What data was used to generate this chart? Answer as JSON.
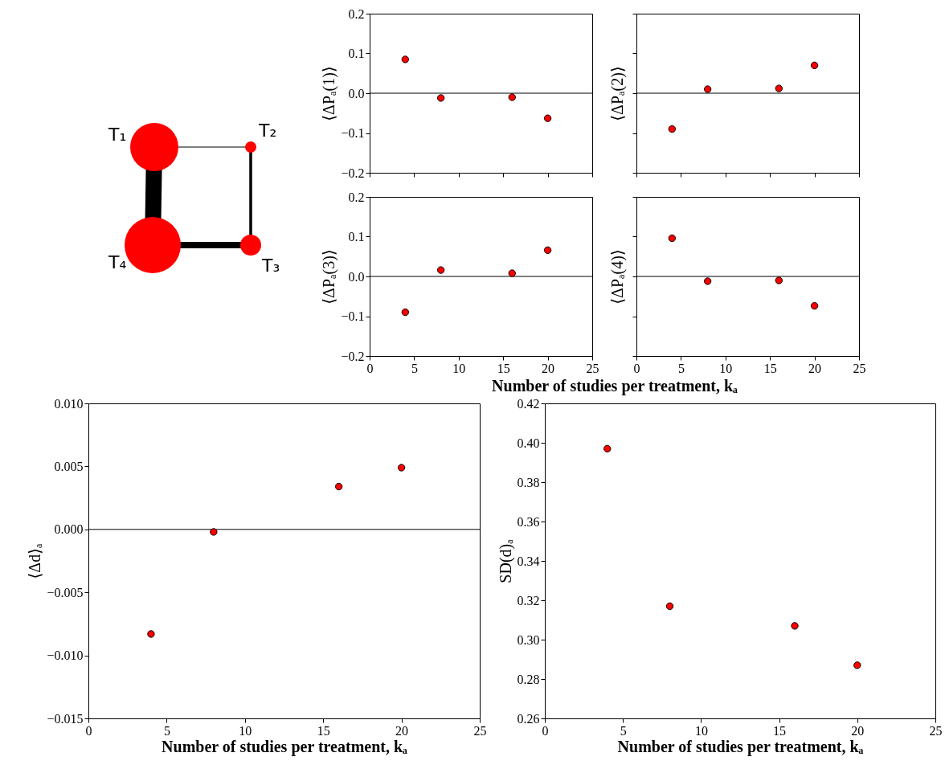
{
  "chart_data": [
    {
      "type": "other",
      "annotations": [
        "T₁",
        "T₂",
        "T₃",
        "T₄"
      ]
    },
    {
      "type": "scatter",
      "ylabel": "⟨ΔPₐ(1)⟩",
      "x": [
        4,
        8,
        16,
        20
      ],
      "values": [
        0.085,
        -0.012,
        -0.01,
        -0.063
      ],
      "color": "#ff0000",
      "marker": "circle",
      "xlim": [
        0,
        25
      ],
      "xticks": [
        0,
        5,
        10,
        15,
        20,
        25
      ],
      "ylim": [
        -0.2,
        0.2
      ],
      "yticks": [
        {
          "value": -0.2,
          "label": "−0.2"
        },
        {
          "value": -0.1,
          "label": "−0.1"
        },
        {
          "value": 0,
          "label": "0.0"
        },
        {
          "value": 0.1,
          "label": "0.1"
        },
        {
          "value": 0.2,
          "label": "0.2"
        }
      ],
      "ref_lines": [
        {
          "axis": "y",
          "value": 0
        }
      ],
      "tick_labels": "y"
    },
    {
      "type": "scatter",
      "ylabel": "⟨ΔPₐ(2)⟩",
      "x": [
        4,
        8,
        16,
        20
      ],
      "values": [
        -0.09,
        0.01,
        0.012,
        0.07
      ],
      "color": "#ff0000",
      "marker": "circle",
      "xlim": [
        0,
        25
      ],
      "xticks": [
        0,
        5,
        10,
        15,
        20,
        25
      ],
      "ylim": [
        -0.2,
        0.2
      ],
      "yticks": [
        -0.2,
        -0.1,
        0,
        0.1,
        0.2
      ],
      "ref_lines": [
        {
          "axis": "y",
          "value": 0
        }
      ],
      "tick_labels": false
    },
    {
      "type": "scatter",
      "ylabel": "⟨ΔPₐ(3)⟩",
      "xlabel": "Number of studies per treatment, kₐ",
      "x": [
        4,
        8,
        16,
        20
      ],
      "values": [
        -0.09,
        0.016,
        0.008,
        0.066
      ],
      "color": "#ff0000",
      "marker": "circle",
      "xlim": [
        0,
        25
      ],
      "xticks": [
        0,
        5,
        10,
        15,
        20,
        25
      ],
      "ylim": [
        -0.2,
        0.2
      ],
      "yticks": [
        {
          "value": -0.2,
          "label": "−0.2"
        },
        {
          "value": -0.1,
          "label": "−0.1"
        },
        {
          "value": 0,
          "label": "0.0"
        },
        {
          "value": 0.1,
          "label": "0.1"
        },
        {
          "value": 0.2,
          "label": "0.2"
        }
      ],
      "ref_lines": [
        {
          "axis": "y",
          "value": 0
        }
      ]
    },
    {
      "type": "scatter",
      "ylabel": "⟨ΔPₐ(4)⟩",
      "x": [
        4,
        8,
        16,
        20
      ],
      "values": [
        0.096,
        -0.012,
        -0.01,
        -0.074
      ],
      "color": "#ff0000",
      "marker": "circle",
      "xlim": [
        0,
        25
      ],
      "xticks": [
        0,
        5,
        10,
        15,
        20,
        25
      ],
      "ylim": [
        -0.2,
        0.2
      ],
      "yticks": [
        -0.2,
        -0.1,
        0,
        0.1,
        0.2
      ],
      "ref_lines": [
        {
          "axis": "y",
          "value": 0
        }
      ],
      "tick_labels": "x"
    },
    {
      "type": "scatter",
      "ylabel": "⟨Δd⟩ₐ",
      "xlabel": "Number of studies per treatment, kₐ",
      "x": [
        4,
        8,
        16,
        20
      ],
      "values": [
        -0.0083,
        -0.0002,
        0.0034,
        0.0049
      ],
      "color": "#ff0000",
      "marker": "circle",
      "xlim": [
        0,
        25
      ],
      "xticks": [
        0,
        5,
        10,
        15,
        20,
        25
      ],
      "ylim": [
        -0.015,
        0.01
      ],
      "yticks": [
        {
          "value": -0.015,
          "label": "−0.015"
        },
        {
          "value": -0.01,
          "label": "−0.010"
        },
        {
          "value": -0.005,
          "label": "−0.005"
        },
        {
          "value": 0,
          "label": "0.000"
        },
        {
          "value": 0.005,
          "label": "0.005"
        },
        {
          "value": 0.01,
          "label": "0.010"
        }
      ],
      "ref_lines": [
        {
          "axis": "y",
          "value": 0
        }
      ]
    },
    {
      "type": "scatter",
      "ylabel": "SD(d)ₐ",
      "xlabel": "Number of studies per treatment, kₐ",
      "x": [
        4,
        8,
        16,
        20
      ],
      "values": [
        0.397,
        0.317,
        0.307,
        0.287
      ],
      "color": "#ff0000",
      "marker": "circle",
      "xlim": [
        0,
        25
      ],
      "xticks": [
        0,
        5,
        10,
        15,
        20,
        25
      ],
      "ylim": [
        0.26,
        0.42
      ],
      "yticks": [
        {
          "value": 0.26,
          "label": "0.26"
        },
        {
          "value": 0.28,
          "label": "0.28"
        },
        {
          "value": 0.3,
          "label": "0.30"
        },
        {
          "value": 0.32,
          "label": "0.32"
        },
        {
          "value": 0.34,
          "label": "0.34"
        },
        {
          "value": 0.36,
          "label": "0.36"
        },
        {
          "value": 0.38,
          "label": "0.38"
        },
        {
          "value": 0.4,
          "label": "0.40"
        },
        {
          "value": 0.42,
          "label": "0.42"
        }
      ]
    }
  ]
}
